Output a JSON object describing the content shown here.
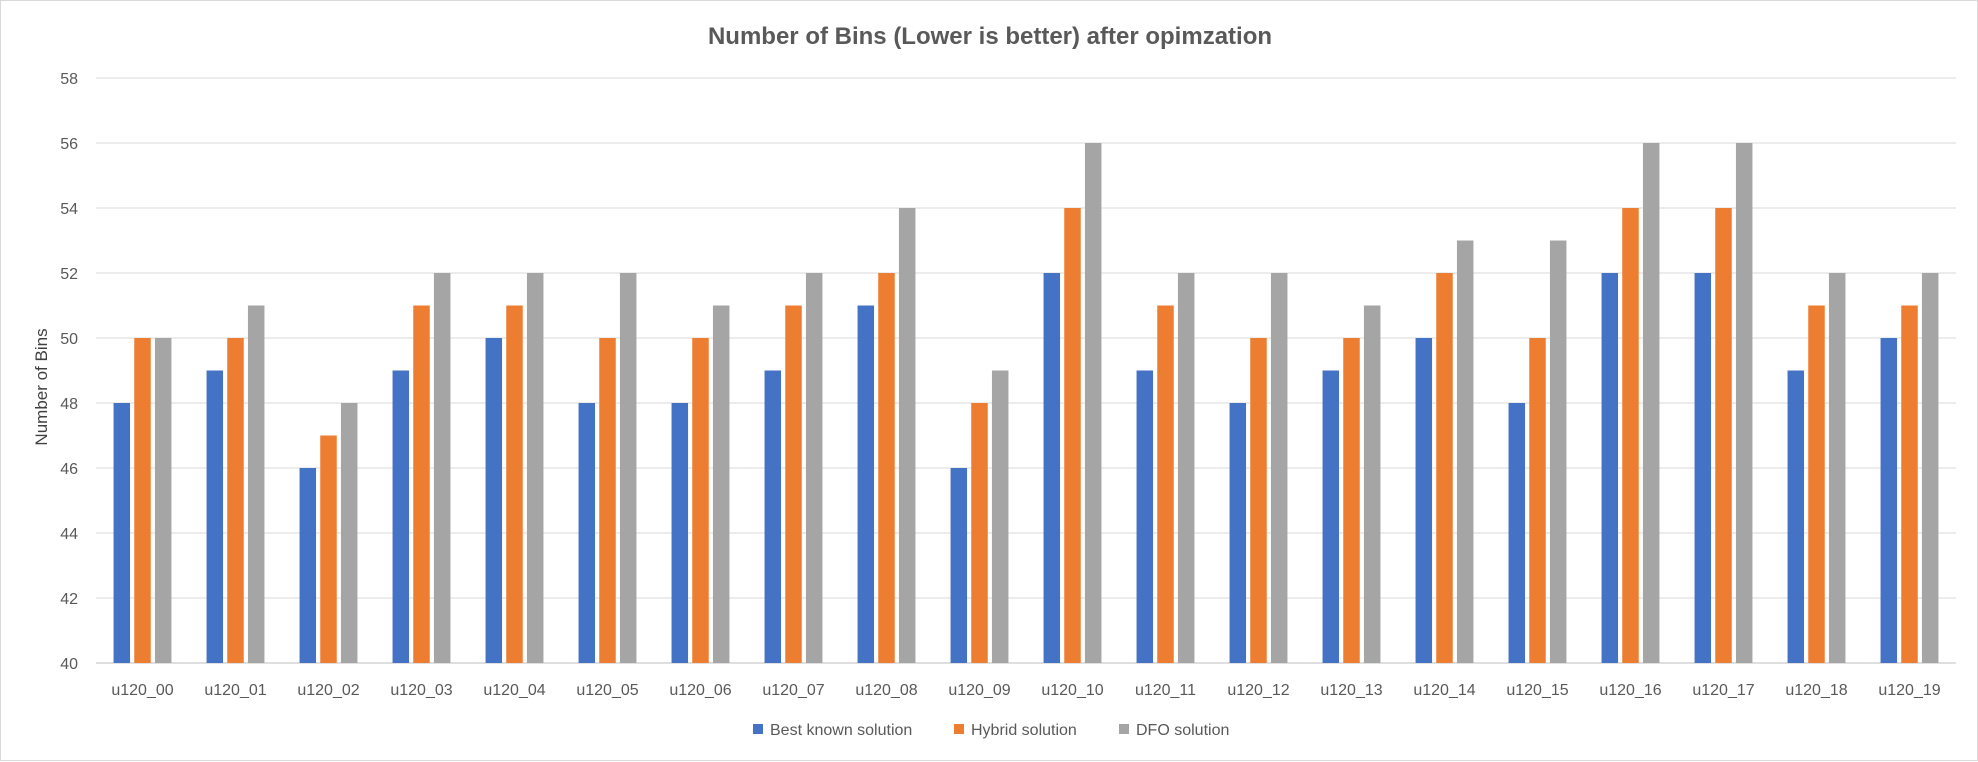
{
  "chart_data": {
    "type": "bar",
    "title": "Number of Bins (Lower is better) after opimzation",
    "xlabel": "",
    "ylabel": "Number of Bins",
    "ylim": [
      40,
      58
    ],
    "yticks": [
      40,
      42,
      44,
      46,
      48,
      50,
      52,
      54,
      56,
      58
    ],
    "grid": true,
    "legend_position": "bottom",
    "categories": [
      "u120_00",
      "u120_01",
      "u120_02",
      "u120_03",
      "u120_04",
      "u120_05",
      "u120_06",
      "u120_07",
      "u120_08",
      "u120_09",
      "u120_10",
      "u120_11",
      "u120_12",
      "u120_13",
      "u120_14",
      "u120_15",
      "u120_16",
      "u120_17",
      "u120_18",
      "u120_19"
    ],
    "series": [
      {
        "name": "Best known solution",
        "color": "#4472c4",
        "values": [
          48,
          49,
          46,
          49,
          50,
          48,
          48,
          49,
          51,
          46,
          52,
          49,
          48,
          49,
          50,
          48,
          52,
          52,
          49,
          50
        ]
      },
      {
        "name": "Hybrid solution",
        "color": "#ed7d31",
        "values": [
          50,
          50,
          47,
          51,
          51,
          50,
          50,
          51,
          52,
          48,
          54,
          51,
          50,
          50,
          52,
          50,
          54,
          54,
          51,
          51
        ]
      },
      {
        "name": "DFO solution",
        "color": "#a5a5a5",
        "values": [
          50,
          51,
          48,
          52,
          52,
          52,
          51,
          52,
          54,
          49,
          56,
          52,
          52,
          51,
          53,
          53,
          56,
          56,
          52,
          52
        ]
      }
    ]
  }
}
